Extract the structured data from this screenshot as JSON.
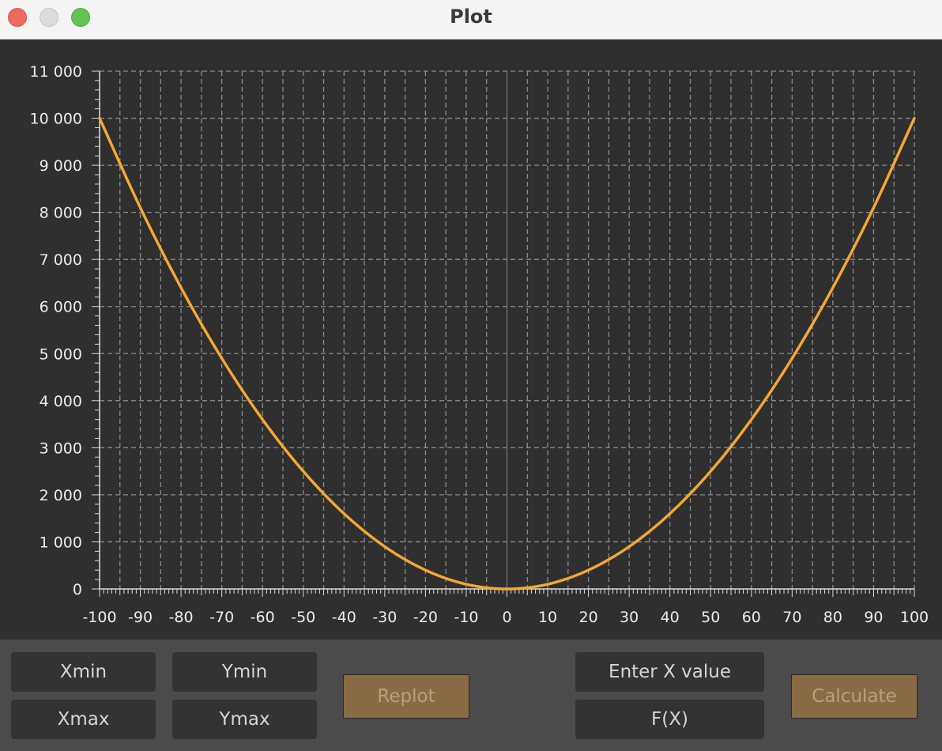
{
  "window": {
    "title": "Plot"
  },
  "controls": {
    "xmin_placeholder": "Xmin",
    "xmax_placeholder": "Xmax",
    "ymin_placeholder": "Ymin",
    "ymax_placeholder": "Ymax",
    "replot_label": "Replot",
    "x_value_placeholder": "Enter X value",
    "fx_placeholder": "F(X)",
    "calculate_label": "Calculate"
  },
  "colors": {
    "curve": "#f5a733",
    "background": "#2f2f2f",
    "grid": "#8c8c8c",
    "axis": "#d9d9d9",
    "panel": "#4b4b4b",
    "button": "#8a6b43"
  },
  "chart_data": {
    "type": "line",
    "title": "",
    "xlabel": "",
    "ylabel": "",
    "xlim": [
      -100,
      100
    ],
    "ylim": [
      0,
      11000
    ],
    "grid": true,
    "x_ticks": [
      -100,
      -90,
      -80,
      -70,
      -60,
      -50,
      -40,
      -30,
      -20,
      -10,
      0,
      10,
      20,
      30,
      40,
      50,
      60,
      70,
      80,
      90,
      100
    ],
    "x_tick_labels": [
      "-100",
      "-90",
      "-80",
      "-70",
      "-60",
      "-50",
      "-40",
      "-30",
      "-20",
      "-10",
      "0",
      "10",
      "20",
      "30",
      "40",
      "50",
      "60",
      "70",
      "80",
      "90",
      "100"
    ],
    "y_ticks": [
      0,
      1000,
      2000,
      3000,
      4000,
      5000,
      6000,
      7000,
      8000,
      9000,
      10000,
      11000
    ],
    "y_tick_labels": [
      "0",
      "1 000",
      "2 000",
      "3 000",
      "4 000",
      "5 000",
      "6 000",
      "7 000",
      "8 000",
      "9 000",
      "10 000",
      "11 000"
    ],
    "series": [
      {
        "color": "#f5a733",
        "x": [
          -100,
          -90,
          -80,
          -70,
          -60,
          -50,
          -40,
          -30,
          -20,
          -10,
          0,
          10,
          20,
          30,
          40,
          50,
          60,
          70,
          80,
          90,
          100
        ],
        "y": [
          10000,
          8100,
          6400,
          4900,
          3600,
          2500,
          1600,
          900,
          400,
          100,
          0,
          100,
          400,
          900,
          1600,
          2500,
          3600,
          4900,
          6400,
          8100,
          10000
        ]
      }
    ]
  }
}
